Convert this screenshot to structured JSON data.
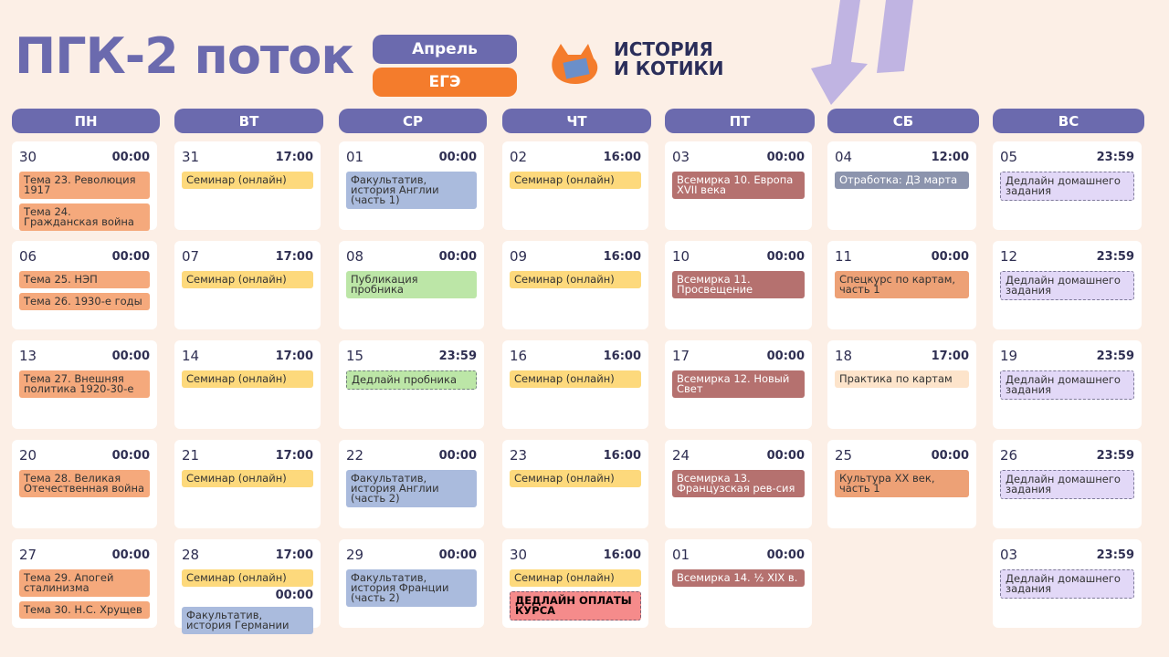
{
  "header": {
    "title": "ПГК-2 поток",
    "month": "Апрель",
    "exam": "ЕГЭ",
    "logo": [
      "ИСТОРИЯ",
      "И КОТИКИ"
    ]
  },
  "days": [
    "ПН",
    "ВТ",
    "СР",
    "ЧТ",
    "ПТ",
    "СБ",
    "ВС"
  ],
  "weeks": [
    [
      {
        "date": "30",
        "time": "00:00",
        "events": [
          {
            "text": "Тема 23. Революция 1917",
            "color": "#f5a97c"
          },
          {
            "text": "Тема 24. Гражданская война",
            "color": "#f5a97c"
          }
        ]
      },
      {
        "date": "31",
        "time": "17:00",
        "events": [
          {
            "text": "Семинар (онлайн)",
            "color": "#fdd97c"
          }
        ]
      },
      {
        "date": "01",
        "time": "00:00",
        "events": [
          {
            "text": "Факультатив, история Англии (часть 1)",
            "color": "#aabbdd"
          }
        ]
      },
      {
        "date": "02",
        "time": "16:00",
        "events": [
          {
            "text": "Семинар (онлайн)",
            "color": "#fdd97c"
          }
        ]
      },
      {
        "date": "03",
        "time": "00:00",
        "events": [
          {
            "text": "Всемирка 10. Европа XVII века",
            "color": "#b5716f"
          }
        ]
      },
      {
        "date": "04",
        "time": "12:00",
        "events": [
          {
            "text": "Отработка: ДЗ марта",
            "color": "#8c94ad"
          }
        ]
      },
      {
        "date": "05",
        "time": "23:59",
        "events": [
          {
            "text": "Дедлайн домашнего задания",
            "color": "#e2d8f7",
            "dashed": true
          }
        ]
      }
    ],
    [
      {
        "date": "06",
        "time": "00:00",
        "events": [
          {
            "text": "Тема 25. НЭП",
            "color": "#f5a97c"
          },
          {
            "text": "Тема 26. 1930-е годы",
            "color": "#f5a97c"
          }
        ]
      },
      {
        "date": "07",
        "time": "17:00",
        "events": [
          {
            "text": "Семинар (онлайн)",
            "color": "#fdd97c"
          }
        ]
      },
      {
        "date": "08",
        "time": "00:00",
        "events": [
          {
            "text": "Публикация пробника",
            "color": "#bce6a7"
          }
        ]
      },
      {
        "date": "09",
        "time": "16:00",
        "events": [
          {
            "text": "Семинар (онлайн)",
            "color": "#fdd97c"
          }
        ]
      },
      {
        "date": "10",
        "time": "00:00",
        "events": [
          {
            "text": "Всемирка 11. Просвещение",
            "color": "#b5716f"
          }
        ]
      },
      {
        "date": "11",
        "time": "00:00",
        "events": [
          {
            "text": "Спецкурс по картам, часть 1",
            "color": "#eda176"
          }
        ]
      },
      {
        "date": "12",
        "time": "23:59",
        "events": [
          {
            "text": "Дедлайн домашнего задания",
            "color": "#e2d8f7",
            "dashed": true
          }
        ]
      }
    ],
    [
      {
        "date": "13",
        "time": "00:00",
        "events": [
          {
            "text": "Тема 27. Внешняя политика 1920-30-е",
            "color": "#f5a97c"
          }
        ]
      },
      {
        "date": "14",
        "time": "17:00",
        "events": [
          {
            "text": "Семинар (онлайн)",
            "color": "#fdd97c"
          }
        ]
      },
      {
        "date": "15",
        "time": "23:59",
        "events": [
          {
            "text": "Дедлайн пробника",
            "color": "#bce6a7",
            "dashed": true
          }
        ]
      },
      {
        "date": "16",
        "time": "16:00",
        "events": [
          {
            "text": "Семинар (онлайн)",
            "color": "#fdd97c"
          }
        ]
      },
      {
        "date": "17",
        "time": "00:00",
        "events": [
          {
            "text": "Всемирка 12. Новый Свет",
            "color": "#b5716f"
          }
        ]
      },
      {
        "date": "18",
        "time": "17:00",
        "events": [
          {
            "text": "Практика по картам",
            "color": "#fde4cb"
          }
        ]
      },
      {
        "date": "19",
        "time": "23:59",
        "events": [
          {
            "text": "Дедлайн домашнего задания",
            "color": "#e2d8f7",
            "dashed": true
          }
        ]
      }
    ],
    [
      {
        "date": "20",
        "time": "00:00",
        "events": [
          {
            "text": "Тема 28. Великая Отечественная война",
            "color": "#f5a97c"
          }
        ]
      },
      {
        "date": "21",
        "time": "17:00",
        "events": [
          {
            "text": "Семинар (онлайн)",
            "color": "#fdd97c"
          }
        ]
      },
      {
        "date": "22",
        "time": "00:00",
        "events": [
          {
            "text": "Факультатив, история Англии (часть 2)",
            "color": "#aabbdd"
          }
        ]
      },
      {
        "date": "23",
        "time": "16:00",
        "events": [
          {
            "text": "Семинар (онлайн)",
            "color": "#fdd97c"
          }
        ]
      },
      {
        "date": "24",
        "time": "00:00",
        "events": [
          {
            "text": "Всемирка 13. Французская рев-сия",
            "color": "#b5716f"
          }
        ]
      },
      {
        "date": "25",
        "time": "00:00",
        "events": [
          {
            "text": "Культура XX век, часть 1",
            "color": "#eda176"
          }
        ]
      },
      {
        "date": "26",
        "time": "23:59",
        "events": [
          {
            "text": "Дедлайн домашнего задания",
            "color": "#e2d8f7",
            "dashed": true
          }
        ]
      }
    ],
    [
      {
        "date": "27",
        "time": "00:00",
        "events": [
          {
            "text": "Тема 29. Апогей сталинизма",
            "color": "#f5a97c"
          },
          {
            "text": "Тема 30. Н.С. Хрущев",
            "color": "#f5a97c"
          }
        ]
      },
      {
        "date": "28",
        "time": "17:00",
        "events": [
          {
            "text": "Семинар (онлайн)",
            "color": "#fdd97c"
          },
          {
            "time": "00:00",
            "text": "Факультатив, история Германии",
            "color": "#aabbdd"
          }
        ]
      },
      {
        "date": "29",
        "time": "00:00",
        "events": [
          {
            "text": "Факультатив, история Франции (часть 2)",
            "color": "#aabbdd"
          }
        ]
      },
      {
        "date": "30",
        "time": "16:00",
        "events": [
          {
            "text": "Семинар (онлайн)",
            "color": "#fdd97c"
          },
          {
            "text": "ДЕДЛАЙН ОПЛАТЫ КУРСА",
            "color": "#f58b8b",
            "dashed": true,
            "bold": true
          }
        ]
      },
      {
        "date": "01",
        "time": "00:00",
        "events": [
          {
            "text": "Всемирка 14. ½ XIX в.",
            "color": "#b5716f"
          }
        ]
      },
      null,
      {
        "date": "03",
        "time": "23:59",
        "events": [
          {
            "text": "Дедлайн домашнего задания",
            "color": "#e2d8f7",
            "dashed": true
          }
        ]
      }
    ]
  ]
}
